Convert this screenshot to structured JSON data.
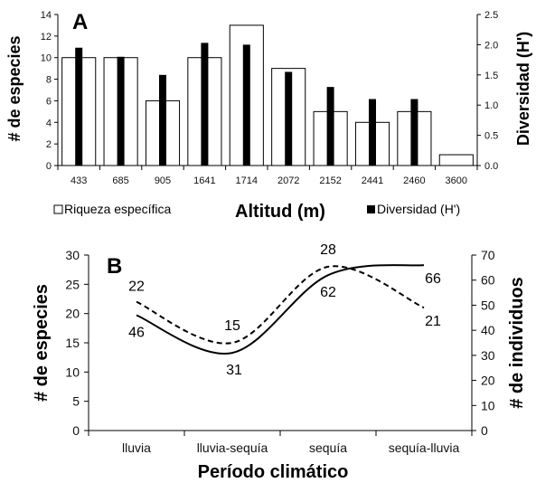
{
  "chart_data": [
    {
      "panel": "A",
      "type": "bar",
      "categories": [
        "433",
        "685",
        "905",
        "1641",
        "1714",
        "2072",
        "2152",
        "2441",
        "2460",
        "3600"
      ],
      "series": [
        {
          "name": "Riqueza específica",
          "axis": "left",
          "color": "#ffffff",
          "values": [
            10,
            10,
            6,
            10,
            13,
            9,
            5,
            4,
            5,
            1
          ]
        },
        {
          "name": "Diversidad (H')",
          "axis": "right",
          "color": "#000000",
          "values": [
            1.95,
            1.8,
            1.5,
            2.03,
            2.0,
            1.55,
            1.3,
            1.1,
            1.1,
            0
          ]
        }
      ],
      "xlabel": "Altitud (m)",
      "ylabel": "# de especies",
      "y2label": "Diversidad (H')",
      "ylim": [
        0,
        14
      ],
      "yticks": [
        "0",
        "2",
        "4",
        "6",
        "8",
        "10",
        "12",
        "14"
      ],
      "y2lim": [
        0,
        2.5
      ],
      "y2ticks": [
        "0.0",
        "0.5",
        "1.0",
        "1.5",
        "2.0",
        "2.5"
      ],
      "legend": {
        "riqueza": "Riqueza específica",
        "diversidad": "Diversidad (H')"
      }
    },
    {
      "panel": "B",
      "type": "line",
      "categories": [
        "lluvia",
        "lluvia-sequía",
        "sequía",
        "sequía-lluvia"
      ],
      "series": [
        {
          "axis": "left",
          "style": "dashed",
          "values": [
            22,
            15,
            28,
            21
          ],
          "labels": [
            "22",
            "15",
            "28",
            "21"
          ]
        },
        {
          "axis": "right",
          "style": "solid",
          "values": [
            46,
            31,
            62,
            66
          ],
          "labels": [
            "46",
            "31",
            "62",
            "66"
          ]
        }
      ],
      "xlabel": "Período climático",
      "ylabel": "# de especies",
      "y2label": "# de individuos",
      "ylim": [
        0,
        30
      ],
      "yticks": [
        "0",
        "5",
        "10",
        "15",
        "20",
        "25",
        "30"
      ],
      "y2lim": [
        0,
        70
      ],
      "y2ticks": [
        "0",
        "10",
        "20",
        "30",
        "40",
        "50",
        "60",
        "70"
      ]
    }
  ]
}
